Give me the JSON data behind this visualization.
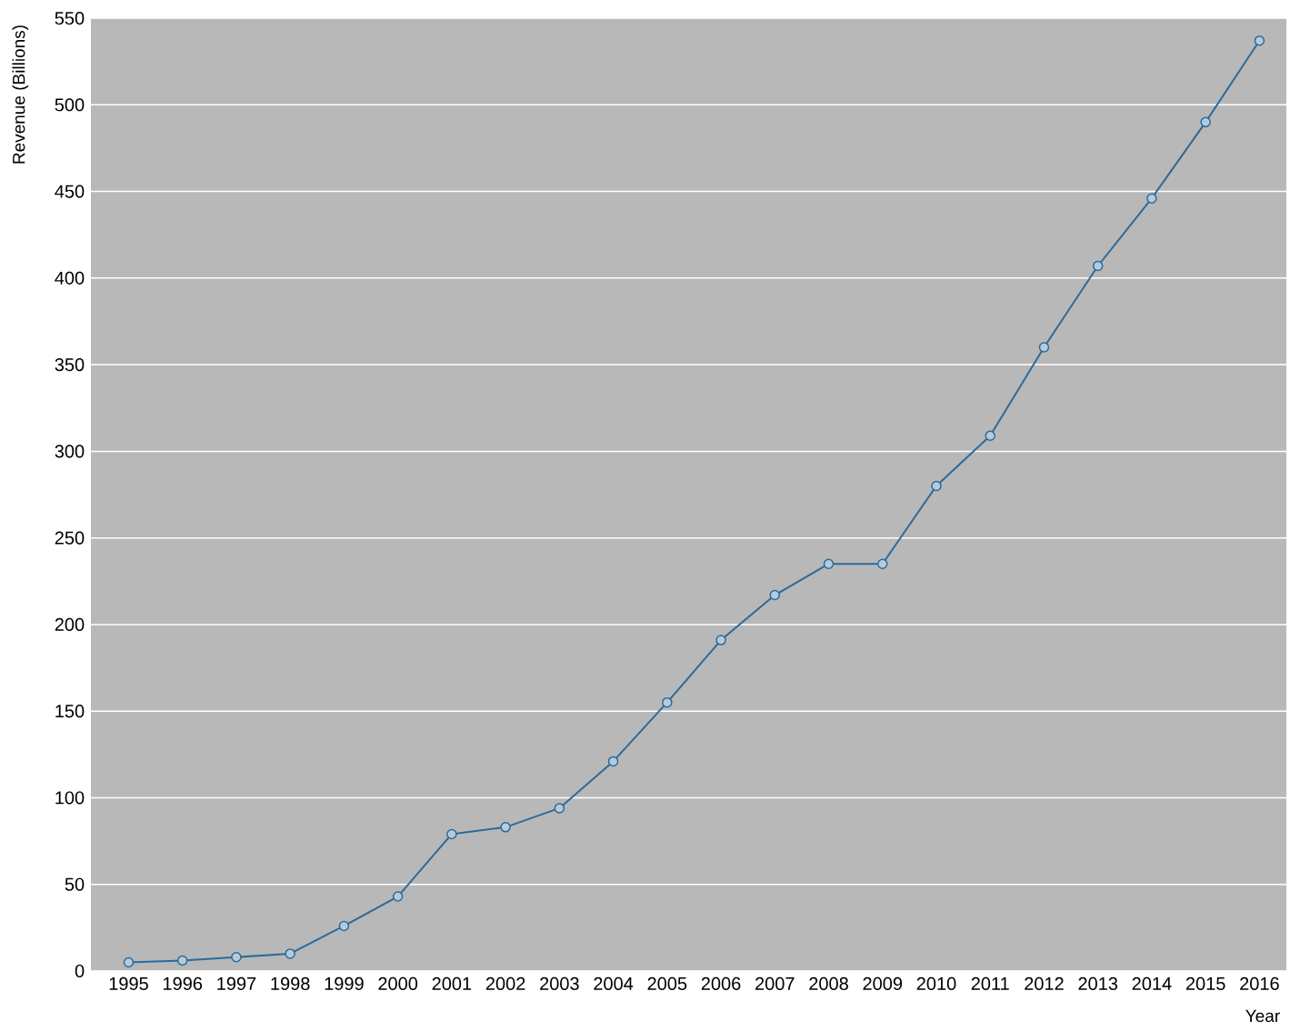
{
  "chart_data": {
    "type": "line",
    "ylabel": "Revenue (Billions)",
    "xlabel": "Year",
    "categories": [
      "1995",
      "1996",
      "1997",
      "1998",
      "1999",
      "2000",
      "2001",
      "2002",
      "2003",
      "2004",
      "2005",
      "2006",
      "2007",
      "2008",
      "2009",
      "2010",
      "2011",
      "2012",
      "2013",
      "2014",
      "2015",
      "2016"
    ],
    "series": [
      {
        "color": "#2b6a9b",
        "values": [
          5,
          6,
          8,
          10,
          26,
          43,
          79,
          83,
          94,
          121,
          155,
          191,
          217,
          235,
          235,
          280,
          309,
          360,
          407,
          446,
          490,
          537
        ]
      }
    ],
    "ylim": [
      0,
      550
    ],
    "yticks": [
      0,
      50,
      100,
      150,
      200,
      250,
      300,
      350,
      400,
      450,
      500,
      550
    ],
    "grid": "y",
    "marker": "circle",
    "line_style": "solid"
  }
}
